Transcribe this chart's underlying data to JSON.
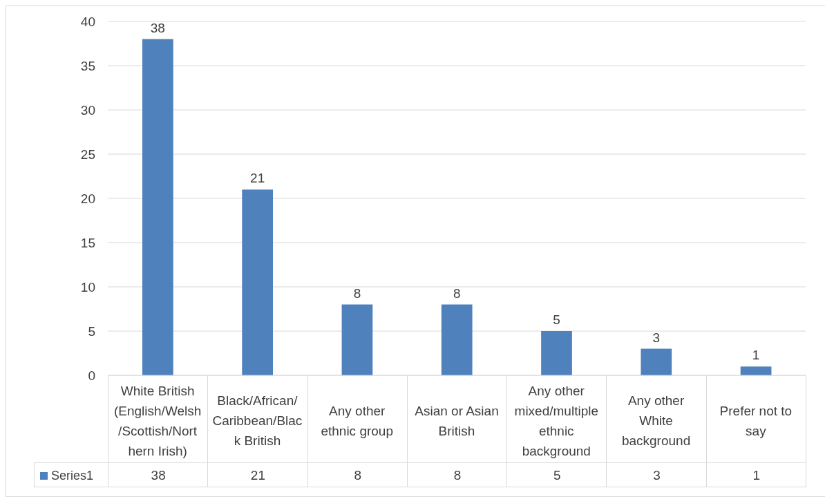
{
  "chart_data": {
    "type": "bar",
    "categories": [
      "White British (English/Welsh/Scottish/Northern Irish)",
      "Black/African/Caribbean/Black British",
      "Any other ethnic group",
      "Asian or Asian British",
      "Any other mixed/multiple ethnic background",
      "Any other White background",
      "Prefer not to say"
    ],
    "series": [
      {
        "name": "Series1",
        "color": "#4f81bd",
        "values": [
          38,
          21,
          8,
          8,
          5,
          3,
          1
        ],
        "value_labels": [
          "38",
          "21",
          "8",
          "8",
          "5",
          "3",
          "1"
        ]
      }
    ],
    "ylim": [
      0,
      40
    ],
    "yticks": [
      0,
      5,
      10,
      15,
      20,
      25,
      30,
      35,
      40
    ],
    "grid": "y",
    "data_labels": true
  }
}
